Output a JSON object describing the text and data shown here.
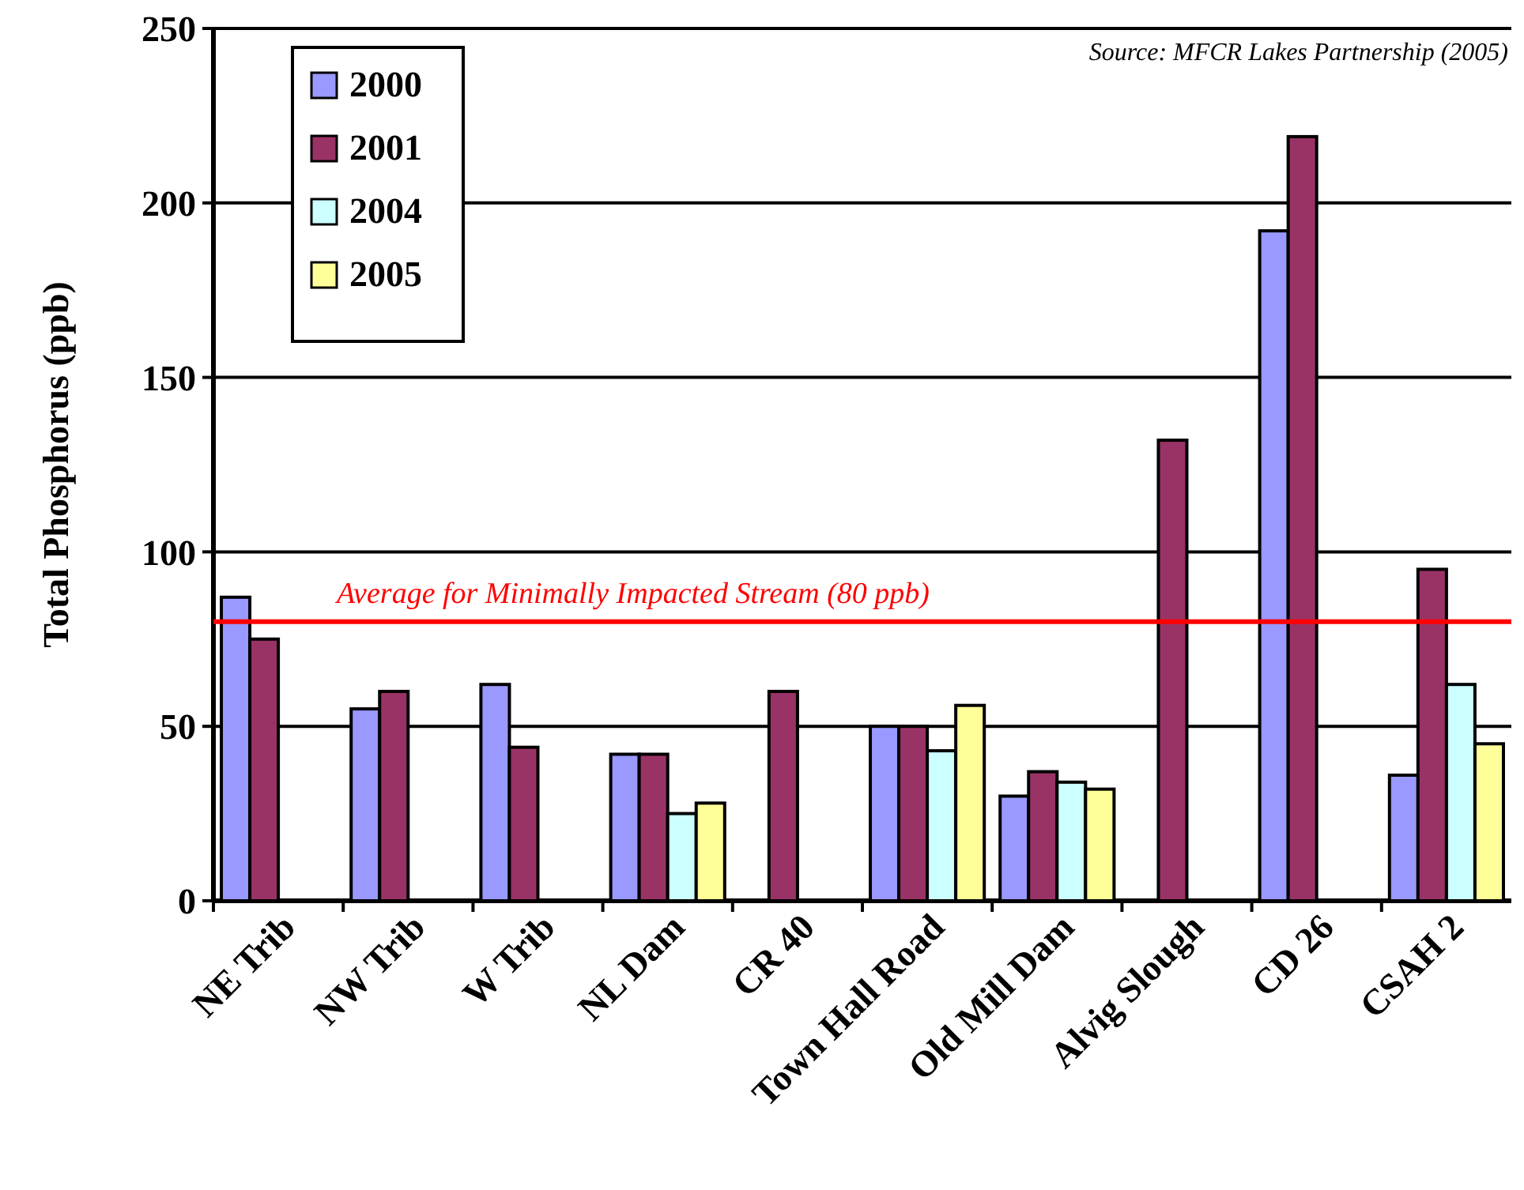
{
  "chart_data": {
    "type": "bar",
    "ylabel": "Total Phosphorus (ppb)",
    "categories": [
      "NE Trib",
      "NW Trib",
      "W Trib",
      "NL Dam",
      "CR 40",
      "Town Hall Road",
      "Old Mill Dam",
      "Alvig Slough",
      "CD 26",
      "CSAH 2"
    ],
    "series": [
      {
        "name": "2000",
        "color": "#9999ff",
        "values": [
          87,
          55,
          62,
          42,
          null,
          50,
          30,
          null,
          192,
          36
        ]
      },
      {
        "name": "2001",
        "color": "#993366",
        "values": [
          75,
          60,
          44,
          42,
          60,
          50,
          37,
          132,
          219,
          95
        ]
      },
      {
        "name": "2004",
        "color": "#ccffff",
        "values": [
          null,
          null,
          null,
          25,
          null,
          43,
          34,
          null,
          null,
          62
        ]
      },
      {
        "name": "2005",
        "color": "#ffff99",
        "values": [
          null,
          null,
          null,
          28,
          null,
          56,
          32,
          null,
          null,
          45
        ]
      }
    ],
    "ylim": [
      0,
      250
    ],
    "yticks": [
      0,
      50,
      100,
      150,
      200,
      250
    ],
    "grid": "y",
    "legend": "top left",
    "ref_lines": [
      {
        "axis": "y",
        "value": 80,
        "label": "Average for Minimally Impacted Stream (80 ppb)",
        "color": "#ff0000"
      }
    ],
    "annotations": [
      "Source: MFCR Lakes Partnership (2005)"
    ]
  }
}
